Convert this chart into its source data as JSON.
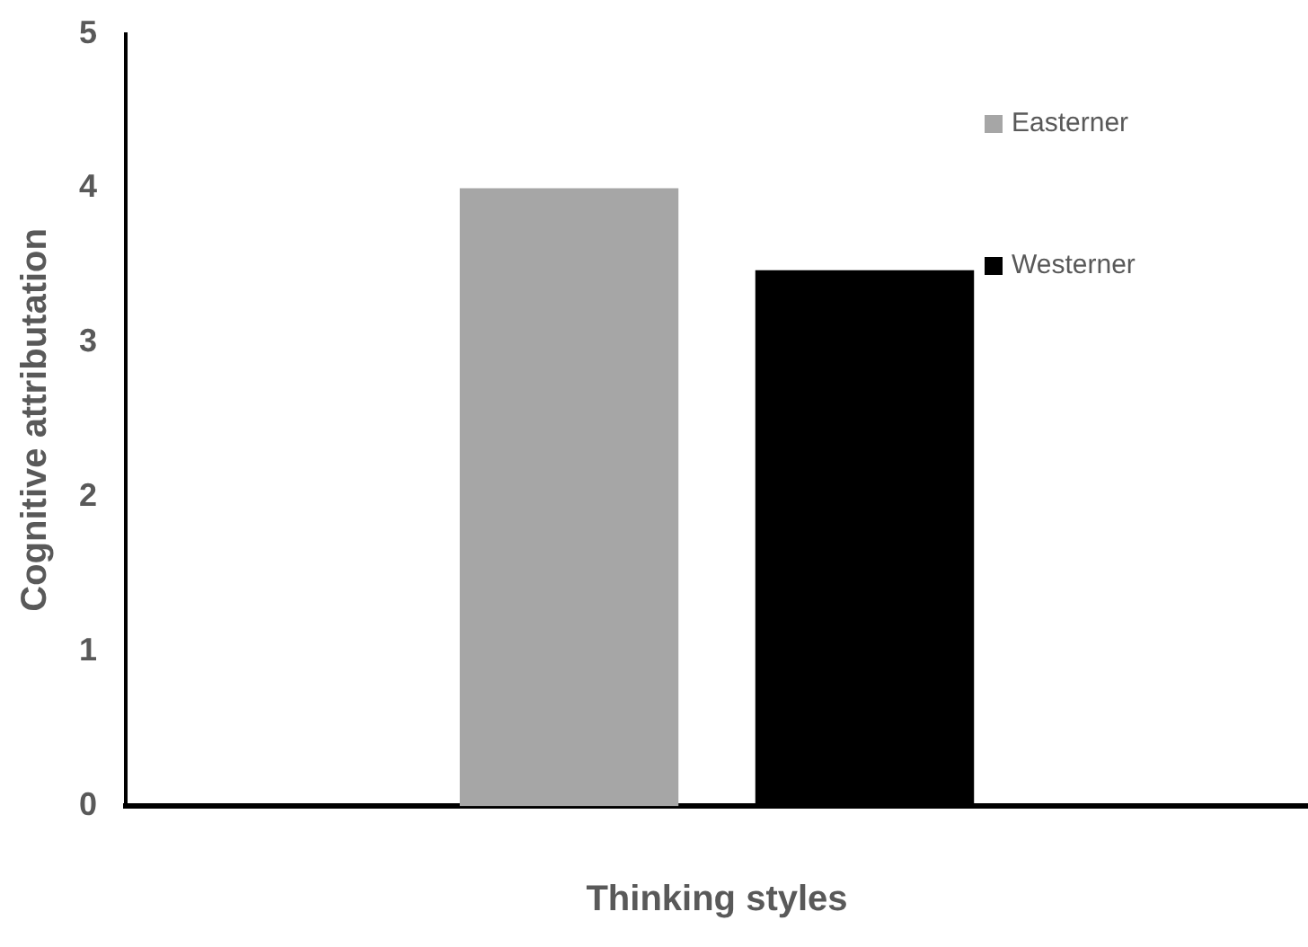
{
  "chart_data": {
    "type": "bar",
    "xlabel": "Thinking styles",
    "ylabel": "Cognitive attributation",
    "categories": [
      null
    ],
    "series": [
      {
        "name": "Easterner",
        "color": "#a6a6a6",
        "values": [
          4.0
        ]
      },
      {
        "name": "Westerner",
        "color": "#000000",
        "values": [
          3.47
        ]
      }
    ],
    "ylim": [
      0,
      5
    ],
    "yticks": [
      0,
      1,
      2,
      3,
      4,
      5
    ],
    "grid": false,
    "legend": "top right"
  }
}
